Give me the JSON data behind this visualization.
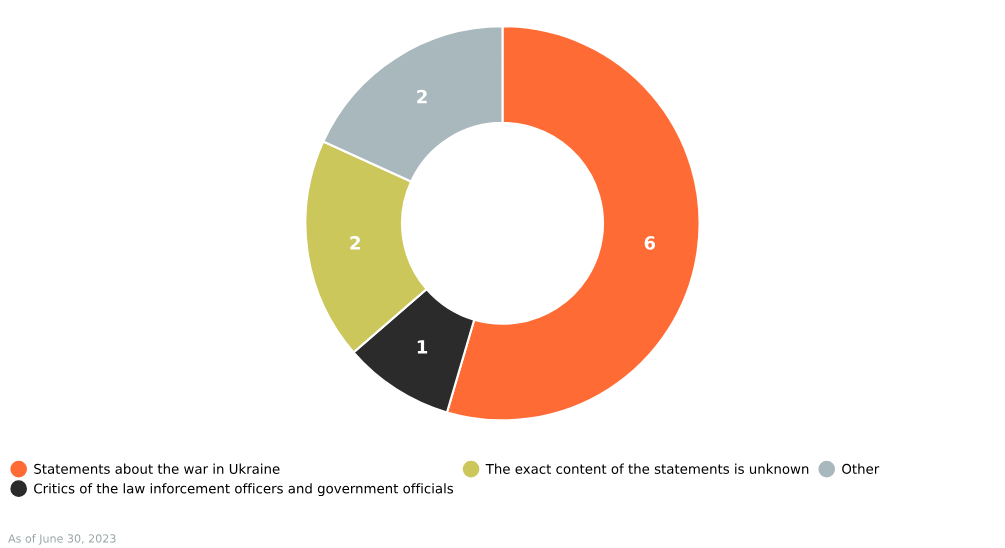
{
  "chart_data": {
    "type": "donut",
    "categories": [
      "Statements about the war in Ukraine",
      "Critics of the law inforcement officers and government officials",
      "The exact content of the statements is unknown",
      "Other"
    ],
    "values": [
      6,
      1,
      2,
      2
    ],
    "colors": [
      "#ff6b35",
      "#2b2b2b",
      "#cbc75b",
      "#a8b8bd"
    ],
    "data_labels": true,
    "legend": "bottom",
    "annotations": [
      "As of June 30, 2023"
    ]
  }
}
